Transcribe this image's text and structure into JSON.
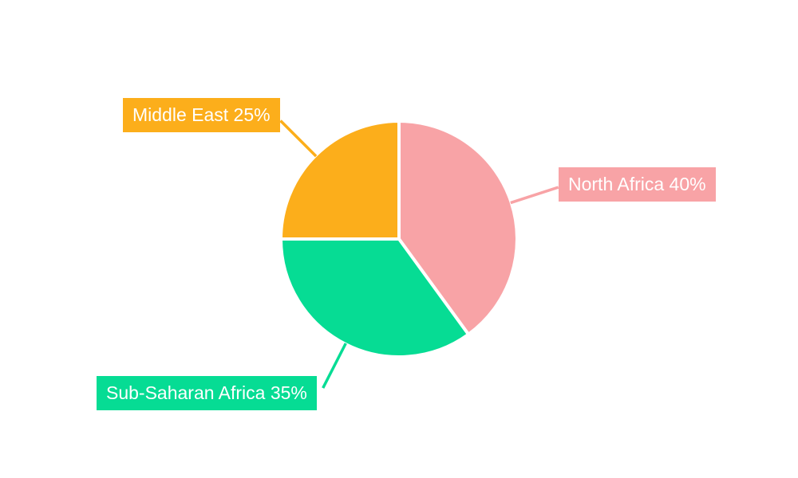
{
  "chart_data": {
    "type": "pie",
    "title": "",
    "categories": [
      "North Africa",
      "Sub-Saharan Africa",
      "Middle East"
    ],
    "values": [
      40,
      35,
      25
    ],
    "unit": "%",
    "colors": [
      "#F8A3A6",
      "#06DC94",
      "#FCAE1B"
    ],
    "start_angle_deg": 0,
    "direction": "clockwise",
    "legend_position": "none",
    "label_text_color": "#ffffff",
    "background_color": "#ffffff",
    "labels": [
      {
        "text": "North Africa 40%",
        "color": "#F8A3A6"
      },
      {
        "text": "Sub-Saharan Africa 35%",
        "color": "#06DC94"
      },
      {
        "text": "Middle East 25%",
        "color": "#FCAE1B"
      }
    ]
  }
}
